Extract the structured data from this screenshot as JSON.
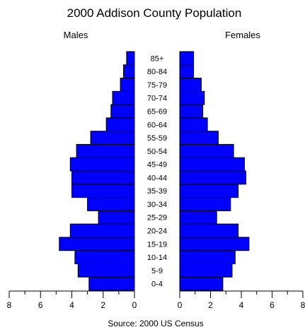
{
  "chart_data": {
    "type": "bar",
    "orientation": "horizontal",
    "layout": "population-pyramid",
    "title": "2000 Addison County Population",
    "source": "Source: 2000 US Census",
    "categories": [
      "0-4",
      "5-9",
      "10-14",
      "15-19",
      "20-24",
      "25-29",
      "30-34",
      "35-39",
      "40-44",
      "45-49",
      "50-54",
      "55-59",
      "60-64",
      "65-69",
      "70-74",
      "75-79",
      "80-84",
      "85+"
    ],
    "series": [
      {
        "name": "Males",
        "values": [
          2.9,
          3.6,
          3.8,
          4.8,
          4.1,
          2.3,
          3.0,
          4.0,
          4.0,
          4.1,
          3.7,
          2.8,
          1.8,
          1.5,
          1.4,
          0.9,
          0.7,
          0.5
        ]
      },
      {
        "name": "Females",
        "values": [
          2.8,
          3.4,
          3.6,
          4.5,
          3.8,
          2.4,
          3.3,
          3.8,
          4.3,
          4.2,
          3.5,
          2.5,
          1.8,
          1.5,
          1.6,
          1.4,
          0.9,
          0.9
        ]
      }
    ],
    "xlim": [
      0,
      8
    ],
    "x_ticks": [
      "8",
      "6",
      "4",
      "2",
      "0"
    ],
    "x_ticks_right": [
      "0",
      "2",
      "4",
      "6",
      "8"
    ],
    "bar_color": "#0000ff",
    "edge_color": "#000000",
    "grid": false,
    "legend": "none"
  }
}
